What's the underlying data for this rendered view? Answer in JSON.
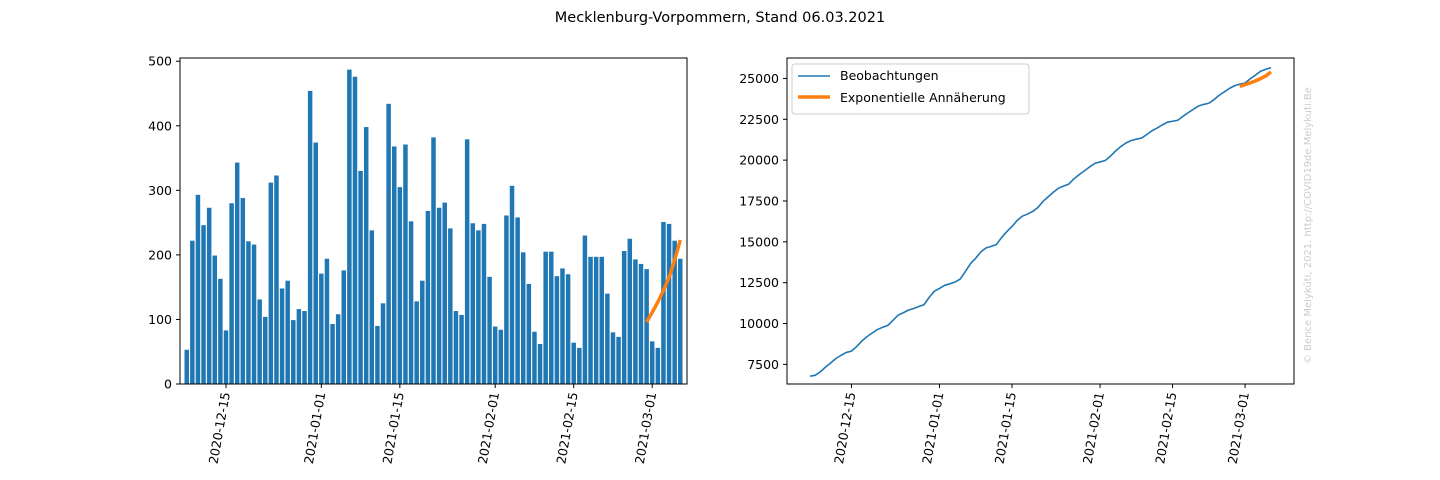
{
  "title": "Mecklenburg-Vorpommern, Stand 06.03.2021",
  "credit": "© Bence Melykúti, 2021. http://COVID19de.Melykuti.Be",
  "colors": {
    "observations": "#1f77b4",
    "fit": "#ff7f0e"
  },
  "chart_data": [
    {
      "type": "bar",
      "x_type": "date",
      "dates": [
        "2020-12-08",
        "2020-12-09",
        "2020-12-10",
        "2020-12-11",
        "2020-12-12",
        "2020-12-13",
        "2020-12-14",
        "2020-12-15",
        "2020-12-16",
        "2020-12-17",
        "2020-12-18",
        "2020-12-19",
        "2020-12-20",
        "2020-12-21",
        "2020-12-22",
        "2020-12-23",
        "2020-12-24",
        "2020-12-25",
        "2020-12-26",
        "2020-12-27",
        "2020-12-28",
        "2020-12-29",
        "2020-12-30",
        "2020-12-31",
        "2021-01-01",
        "2021-01-02",
        "2021-01-03",
        "2021-01-04",
        "2021-01-05",
        "2021-01-06",
        "2021-01-07",
        "2021-01-08",
        "2021-01-09",
        "2021-01-10",
        "2021-01-11",
        "2021-01-12",
        "2021-01-13",
        "2021-01-14",
        "2021-01-15",
        "2021-01-16",
        "2021-01-17",
        "2021-01-18",
        "2021-01-19",
        "2021-01-20",
        "2021-01-21",
        "2021-01-22",
        "2021-01-23",
        "2021-01-24",
        "2021-01-25",
        "2021-01-26",
        "2021-01-27",
        "2021-01-28",
        "2021-01-29",
        "2021-01-30",
        "2021-01-31",
        "2021-02-01",
        "2021-02-02",
        "2021-02-03",
        "2021-02-04",
        "2021-02-05",
        "2021-02-06",
        "2021-02-07",
        "2021-02-08",
        "2021-02-09",
        "2021-02-10",
        "2021-02-11",
        "2021-02-12",
        "2021-02-13",
        "2021-02-14",
        "2021-02-15",
        "2021-02-16",
        "2021-02-17",
        "2021-02-18",
        "2021-02-19",
        "2021-02-20",
        "2021-02-21",
        "2021-02-22",
        "2021-02-23",
        "2021-02-24",
        "2021-02-25",
        "2021-02-26",
        "2021-02-27",
        "2021-02-28",
        "2021-03-01",
        "2021-03-02",
        "2021-03-03",
        "2021-03-04",
        "2021-03-05",
        "2021-03-06"
      ],
      "values": [
        53,
        222,
        293,
        246,
        273,
        199,
        163,
        83,
        280,
        343,
        288,
        221,
        216,
        131,
        104,
        312,
        323,
        148,
        160,
        99,
        116,
        113,
        454,
        374,
        171,
        194,
        93,
        108,
        176,
        487,
        476,
        330,
        398,
        238,
        90,
        125,
        434,
        368,
        305,
        371,
        252,
        128,
        160,
        268,
        382,
        273,
        281,
        241,
        113,
        107,
        379,
        249,
        238,
        248,
        166,
        89,
        84,
        261,
        307,
        258,
        204,
        155,
        81,
        62,
        205,
        205,
        167,
        179,
        170,
        64,
        56,
        230,
        197,
        197,
        197,
        140,
        80,
        73,
        206,
        225,
        193,
        186,
        178,
        66,
        56,
        251,
        248,
        222,
        194
      ],
      "series": [
        {
          "name": "",
          "type": "line",
          "x": [
            "2021-02-28",
            "2021-03-01",
            "2021-03-02",
            "2021-03-03",
            "2021-03-04",
            "2021-03-05",
            "2021-03-06"
          ],
          "y": [
            96,
            111,
            127,
            145,
            165,
            192,
            223
          ]
        }
      ],
      "ylim": [
        0,
        500
      ],
      "yticks": [
        0,
        100,
        200,
        300,
        400,
        500
      ],
      "xticks": [
        "2020-12-15",
        "2021-01-01",
        "2021-01-15",
        "2021-02-01",
        "2021-02-15",
        "2021-03-01"
      ],
      "xtick_rotation": 80,
      "grid": false
    },
    {
      "type": "line",
      "x_type": "date",
      "series": [
        {
          "name": "Beobachtungen",
          "x": [
            "2020-12-07",
            "2020-12-08",
            "2020-12-09",
            "2020-12-10",
            "2020-12-11",
            "2020-12-12",
            "2020-12-13",
            "2020-12-14",
            "2020-12-15",
            "2020-12-16",
            "2020-12-17",
            "2020-12-18",
            "2020-12-19",
            "2020-12-20",
            "2020-12-21",
            "2020-12-22",
            "2020-12-23",
            "2020-12-24",
            "2020-12-25",
            "2020-12-26",
            "2020-12-27",
            "2020-12-28",
            "2020-12-29",
            "2020-12-30",
            "2020-12-31",
            "2021-01-01",
            "2021-01-02",
            "2021-01-03",
            "2021-01-04",
            "2021-01-05",
            "2021-01-06",
            "2021-01-07",
            "2021-01-08",
            "2021-01-09",
            "2021-01-10",
            "2021-01-11",
            "2021-01-12",
            "2021-01-13",
            "2021-01-14",
            "2021-01-15",
            "2021-01-16",
            "2021-01-17",
            "2021-01-18",
            "2021-01-19",
            "2021-01-20",
            "2021-01-21",
            "2021-01-22",
            "2021-01-23",
            "2021-01-24",
            "2021-01-25",
            "2021-01-26",
            "2021-01-27",
            "2021-01-28",
            "2021-01-29",
            "2021-01-30",
            "2021-01-31",
            "2021-02-01",
            "2021-02-02",
            "2021-02-03",
            "2021-02-04",
            "2021-02-05",
            "2021-02-06",
            "2021-02-07",
            "2021-02-08",
            "2021-02-09",
            "2021-02-10",
            "2021-02-11",
            "2021-02-12",
            "2021-02-13",
            "2021-02-14",
            "2021-02-15",
            "2021-02-16",
            "2021-02-17",
            "2021-02-18",
            "2021-02-19",
            "2021-02-20",
            "2021-02-21",
            "2021-02-22",
            "2021-02-23",
            "2021-02-24",
            "2021-02-25",
            "2021-02-26",
            "2021-02-27",
            "2021-02-28",
            "2021-03-01",
            "2021-03-02",
            "2021-03-03",
            "2021-03-04",
            "2021-03-05",
            "2021-03-06"
          ],
          "y": [
            6780,
            6830,
            7050,
            7340,
            7590,
            7860,
            8060,
            8230,
            8310,
            8590,
            8930,
            9200,
            9420,
            9630,
            9770,
            9880,
            10190,
            10510,
            10660,
            10820,
            10920,
            11040,
            11150,
            11600,
            11980,
            12150,
            12340,
            12430,
            12540,
            12720,
            13190,
            13670,
            14000,
            14390,
            14630,
            14720,
            14840,
            15270,
            15630,
            15940,
            16310,
            16570,
            16700,
            16860,
            17100,
            17480,
            17760,
            18040,
            18290,
            18420,
            18540,
            18870,
            19120,
            19350,
            19590,
            19800,
            19890,
            19980,
            20240,
            20560,
            20830,
            21050,
            21200,
            21280,
            21350,
            21560,
            21790,
            21960,
            22150,
            22320,
            22380,
            22440,
            22680,
            22900,
            23110,
            23310,
            23410,
            23480,
            23700,
            23970,
            24180,
            24390,
            24560,
            24650,
            24720,
            24980,
            25200,
            25440,
            25560,
            25660
          ]
        },
        {
          "name": "Exponentielle Annäherung",
          "x": [
            "2021-02-28",
            "2021-03-01",
            "2021-03-02",
            "2021-03-03",
            "2021-03-04",
            "2021-03-05",
            "2021-03-06"
          ],
          "y": [
            24510,
            24620,
            24730,
            24850,
            24990,
            25150,
            25400
          ]
        }
      ],
      "yticks": [
        7500,
        10000,
        12500,
        15000,
        17500,
        20000,
        22500,
        25000
      ],
      "ylim": [
        6300,
        26250
      ],
      "xticks": [
        "2020-12-15",
        "2021-01-01",
        "2021-01-15",
        "2021-02-01",
        "2021-02-15",
        "2021-03-01"
      ],
      "xtick_rotation": 80,
      "legend": "top-left",
      "grid": false
    }
  ]
}
